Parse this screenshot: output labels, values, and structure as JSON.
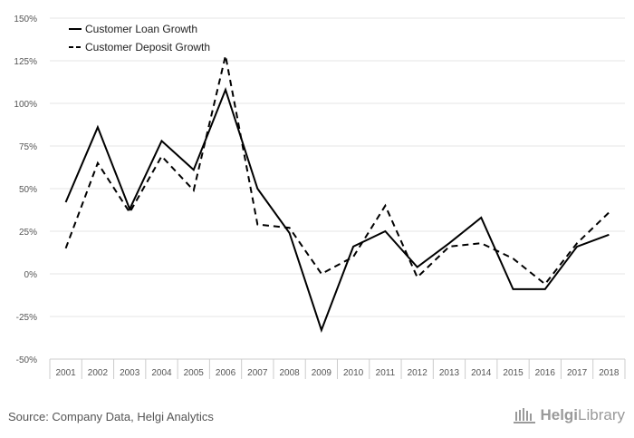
{
  "chart_data": {
    "type": "line",
    "categories": [
      "2001",
      "2002",
      "2003",
      "2004",
      "2005",
      "2006",
      "2007",
      "2008",
      "2009",
      "2010",
      "2011",
      "2012",
      "2013",
      "2014",
      "2015",
      "2016",
      "2017",
      "2018"
    ],
    "series": [
      {
        "name": "Customer Loan Growth",
        "style": "solid",
        "color": "#000000",
        "values": [
          42,
          86,
          38,
          78,
          61,
          108,
          50,
          24,
          -33,
          16,
          25,
          4,
          18,
          33,
          -9,
          -9,
          16,
          23
        ]
      },
      {
        "name": "Customer Deposit Growth",
        "style": "dashed",
        "color": "#000000",
        "values": [
          15,
          65,
          36,
          69,
          49,
          128,
          29,
          27,
          0,
          10,
          40,
          -2,
          16,
          18,
          9,
          -6,
          18,
          36
        ]
      }
    ],
    "ylim": [
      -50,
      150
    ],
    "yticks": [
      150,
      125,
      100,
      75,
      50,
      25,
      0,
      -25,
      -50
    ],
    "ytick_labels": [
      "150%",
      "125%",
      "100%",
      "75%",
      "50%",
      "25%",
      "0%",
      "-25%",
      "-50%"
    ],
    "legend_position": "top-left",
    "grid": true
  },
  "footer": {
    "source": "Source: Company Data, Helgi Analytics",
    "logo_part1": "Helgi",
    "logo_part2": "Library"
  }
}
